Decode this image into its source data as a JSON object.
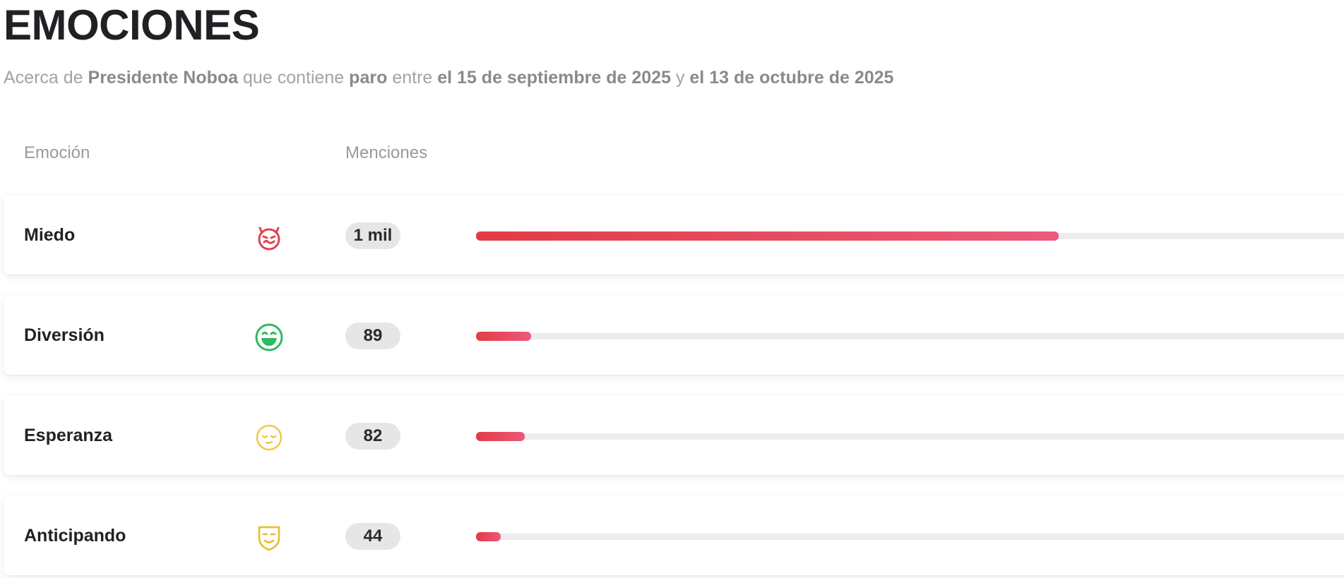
{
  "header": {
    "title": "EMOCIONES",
    "subtitle": {
      "prefix": "Acerca de",
      "subject": "Presidente Noboa",
      "mid1": "que contiene",
      "keyword": "paro",
      "mid2": "entre",
      "date_from": "el 15 de septiembre de 2025",
      "mid3": "y",
      "date_to": "el 13 de octubre de 2025"
    }
  },
  "table": {
    "columns": {
      "emotion": "Emoción",
      "mentions": "Menciones"
    },
    "rows": [
      {
        "label": "Miedo",
        "icon": "devil-face-icon",
        "icon_color": "#e0434f",
        "count": "1 mil",
        "fill": 0.66
      },
      {
        "label": "Diversión",
        "icon": "laughing-face-icon",
        "icon_color": "#2dbb5d",
        "count": "89",
        "fill": 0.0625
      },
      {
        "label": "Esperanza",
        "icon": "hopeful-face-icon",
        "icon_color": "#f2c94c",
        "count": "82",
        "fill": 0.055
      },
      {
        "label": "Anticipando",
        "icon": "mask-icon",
        "icon_color": "#e8c13a",
        "count": "44",
        "fill": 0.028
      }
    ]
  },
  "colors": {
    "bar_start": "#e23b45",
    "bar_end": "#ec5a7a",
    "track": "#ececee"
  }
}
